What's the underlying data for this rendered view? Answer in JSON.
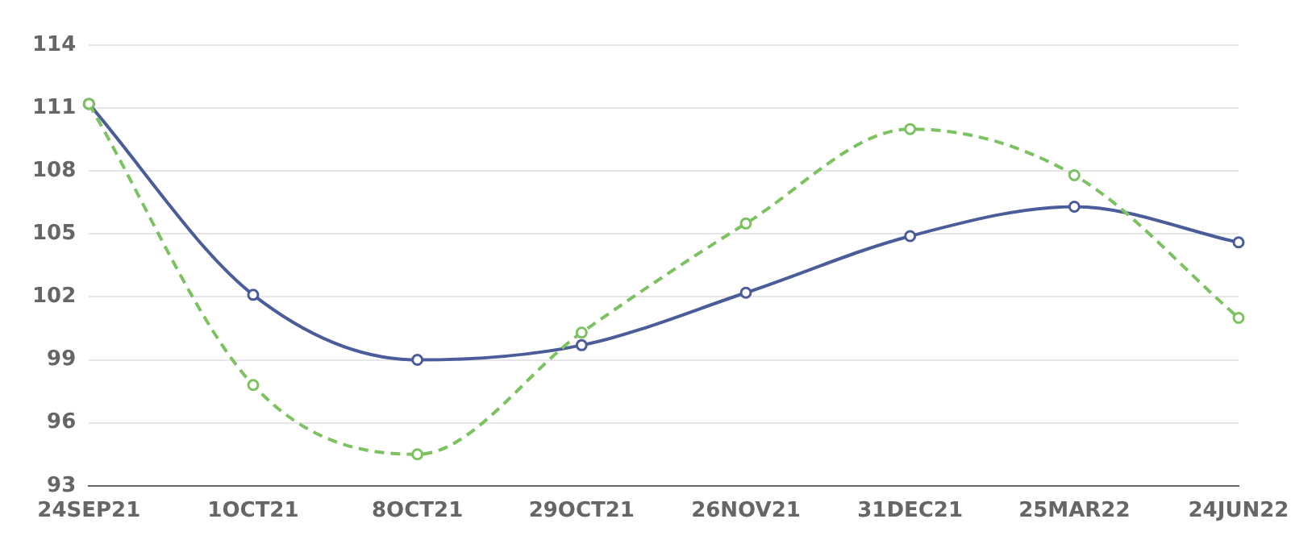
{
  "chart_data": {
    "type": "line",
    "categories": [
      "24SEP21",
      "1OCT21",
      "8OCT21",
      "29OCT21",
      "26NOV21",
      "31DEC21",
      "25MAR22",
      "24JUN22"
    ],
    "series": [
      {
        "color": "#4a5c9a",
        "line_style": "solid",
        "values": [
          111.2,
          102.1,
          99.0,
          99.7,
          102.2,
          104.9,
          106.3,
          104.6
        ]
      },
      {
        "color": "#7cc261",
        "line_style": "dashed",
        "values": [
          111.2,
          97.8,
          94.5,
          100.3,
          105.5,
          110.0,
          107.8,
          101.0
        ]
      }
    ],
    "ylim": [
      93,
      114
    ],
    "yticks": [
      93,
      96,
      99,
      102,
      105,
      108,
      111,
      114
    ],
    "grid": "y",
    "legend": false,
    "marker": "circle"
  }
}
